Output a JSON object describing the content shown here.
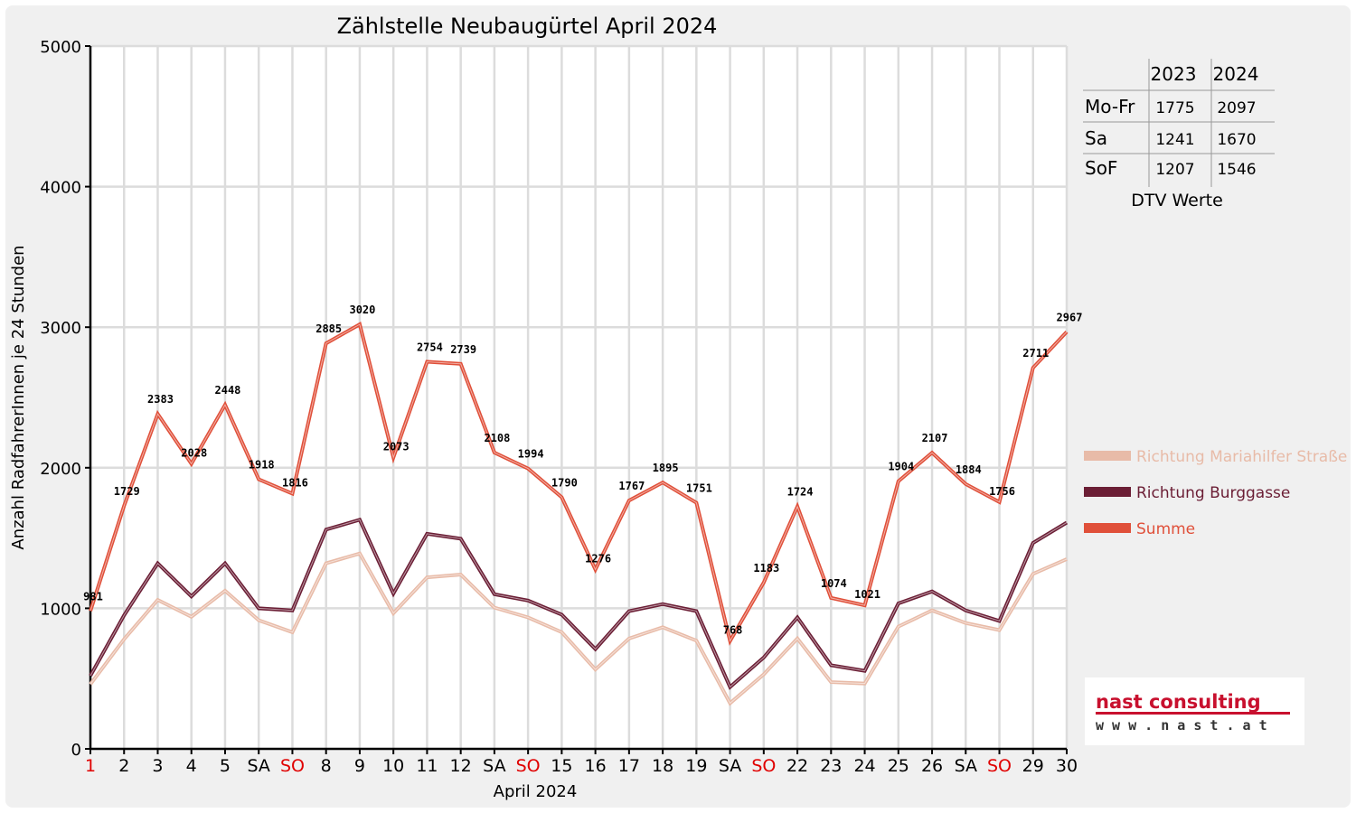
{
  "chart_data": {
    "type": "line",
    "title": "Zählstelle Neubaugürtel April 2024",
    "xlabel": "April 2024",
    "ylabel": "Anzahl RadfahrerInnen je 24 Stunden",
    "ylim": [
      0,
      5000
    ],
    "yticks": [
      "0",
      "1000",
      "2000",
      "3000",
      "4000",
      "5000"
    ],
    "grid": true,
    "legend_position": "right",
    "categories": [
      "1",
      "2",
      "3",
      "4",
      "5",
      "SA",
      "SO",
      "8",
      "9",
      "10",
      "11",
      "12",
      "SA",
      "SO",
      "15",
      "16",
      "17",
      "18",
      "19",
      "SA",
      "SO",
      "22",
      "23",
      "24",
      "25",
      "26",
      "SA",
      "SO",
      "29",
      "30"
    ],
    "red_category_indices": [
      0,
      6,
      13,
      20,
      27
    ],
    "series": [
      {
        "name": "Richtung Mariahilfer Straße",
        "color": "#e8bba8",
        "values": [
          460,
          780,
          1060,
          940,
          1125,
          915,
          830,
          1320,
          1390,
          965,
          1220,
          1240,
          1005,
          935,
          830,
          565,
          785,
          865,
          770,
          325,
          530,
          785,
          475,
          465,
          870,
          985,
          895,
          845,
          1245,
          1350
        ]
      },
      {
        "name": "Richtung Burggasse",
        "color": "#6b1e35",
        "values": [
          520,
          950,
          1320,
          1085,
          1320,
          1000,
          985,
          1560,
          1630,
          1105,
          1530,
          1495,
          1100,
          1055,
          955,
          710,
          980,
          1030,
          980,
          440,
          650,
          935,
          595,
          555,
          1035,
          1120,
          985,
          910,
          1465,
          1610
        ]
      },
      {
        "name": "Summe",
        "color": "#e0503a",
        "values": [
          981,
          1729,
          2383,
          2028,
          2448,
          1918,
          1816,
          2885,
          3020,
          2073,
          2754,
          2739,
          2108,
          1994,
          1790,
          1276,
          1767,
          1895,
          1751,
          768,
          1183,
          1724,
          1074,
          1021,
          1904,
          2107,
          1884,
          1756,
          2711,
          2967
        ]
      }
    ],
    "data_labels": [
      "981",
      "1729",
      "2383",
      "2028",
      "2448",
      "1918",
      "1816",
      "2885",
      "3020",
      "2073",
      "2754",
      "2739",
      "2108",
      "1994",
      "1790",
      "1276",
      "1767",
      "1895",
      "1751",
      "768",
      "1183",
      "1724",
      "1074",
      "1021",
      "1904",
      "2107",
      "1884",
      "1756",
      "2711",
      "2967"
    ]
  },
  "dtv_table": {
    "headers": [
      "",
      "2023",
      "2024"
    ],
    "rows": [
      {
        "label": "Mo-Fr",
        "v2023": "1775",
        "v2024": "2097"
      },
      {
        "label": "Sa",
        "v2023": "1241",
        "v2024": "1670"
      },
      {
        "label": "SoF",
        "v2023": "1207",
        "v2024": "1546"
      }
    ],
    "caption": "DTV Werte"
  },
  "logo": {
    "name": "nast consulting",
    "url": "w w w . n a s t . a t"
  },
  "colors": {
    "background": "#f0f0f0",
    "grid": "#dcdcdc",
    "weekend_red": "#e00000"
  }
}
